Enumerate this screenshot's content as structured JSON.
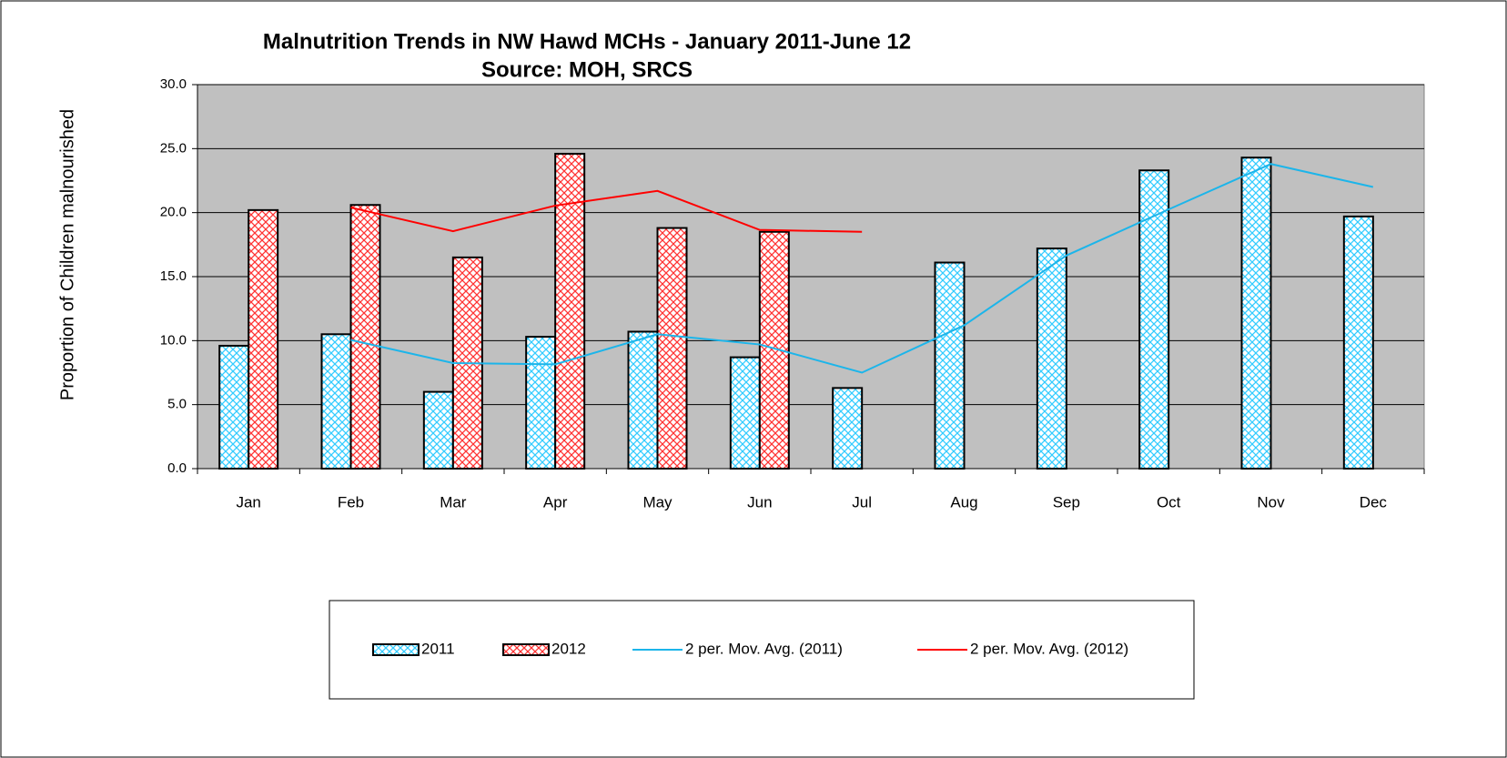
{
  "chart_data": {
    "type": "bar",
    "title": "Malnutrition Trends in NW Hawd MCHs - January 2011-June 12",
    "subtitle": "Source: MOH, SRCS",
    "y_label": "Proportion of Children malnourished",
    "categories": [
      "Jan",
      "Feb",
      "Mar",
      "Apr",
      "May",
      "Jun",
      "Jul",
      "Aug",
      "Sep",
      "Oct",
      "Nov",
      "Dec"
    ],
    "series": [
      {
        "name": "2011",
        "type": "bar",
        "color": "#33ccff",
        "values": [
          9.6,
          10.5,
          6.0,
          10.3,
          10.7,
          8.7,
          6.3,
          16.1,
          17.2,
          23.3,
          24.3,
          19.7
        ]
      },
      {
        "name": "2012",
        "type": "bar",
        "color": "#ff3333",
        "values": [
          20.2,
          20.6,
          16.5,
          24.6,
          18.8,
          18.5,
          null,
          null,
          null,
          null,
          null,
          null
        ]
      },
      {
        "name": "2 per. Mov. Avg. (2011)",
        "type": "line",
        "color": "#1cb5ea",
        "values": [
          null,
          10.05,
          8.25,
          8.15,
          10.5,
          9.7,
          7.5,
          11.2,
          16.65,
          20.25,
          23.8,
          22.0
        ]
      },
      {
        "name": "2 per. Mov. Avg. (2012)",
        "type": "line",
        "color": "#ff0000",
        "values": [
          null,
          20.4,
          18.55,
          20.55,
          21.7,
          18.65,
          18.5,
          null,
          null,
          null,
          null,
          null
        ]
      }
    ],
    "ylim": [
      0,
      30
    ],
    "yticks": [
      {
        "value": 0,
        "label": "0.0"
      },
      {
        "value": 5,
        "label": "5.0"
      },
      {
        "value": 10,
        "label": "10.0"
      },
      {
        "value": 15,
        "label": "15.0"
      },
      {
        "value": 20,
        "label": "20.0"
      },
      {
        "value": 25,
        "label": "25.0"
      },
      {
        "value": 30,
        "label": "30.0"
      }
    ],
    "grid": true,
    "legend": "bottom"
  }
}
